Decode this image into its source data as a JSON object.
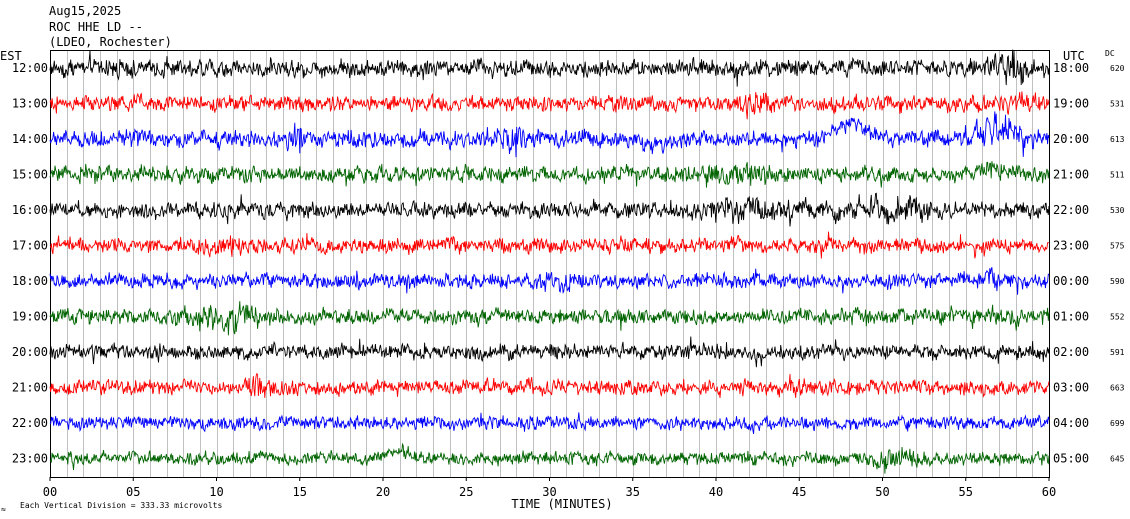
{
  "header": {
    "date": "Aug15,2025",
    "station": "ROC HHE LD --",
    "network": "(LDEO, Rochester)"
  },
  "axis_labels": {
    "left_timezone": "EST",
    "right_timezone": "UTC",
    "dc_header": "DC",
    "x_axis_title": "TIME (MINUTES)",
    "footer_note": "Each Vertical Division = 333.33 microvolts",
    "footer_mark": "≈"
  },
  "colors": {
    "black": "#000000",
    "red": "#ff0000",
    "blue": "#0000ff",
    "green": "#006400",
    "grid": "#808080"
  },
  "chart_data": {
    "type": "line",
    "title": "ROC HHE LD --",
    "xlabel": "TIME (MINUTES)",
    "xlim": [
      0,
      60
    ],
    "x_ticks": [
      "00",
      "05",
      "10",
      "15",
      "20",
      "25",
      "30",
      "35",
      "40",
      "45",
      "50",
      "55",
      "60"
    ],
    "vertical_division_microvolts": 333.33,
    "series": [
      {
        "est": "12:00",
        "utc": "18:00",
        "dc": "620",
        "color": "black",
        "amp": 1.0,
        "events": [
          {
            "t": 57.8,
            "amp": 2.2,
            "dur": 1.2,
            "shift": 0
          }
        ]
      },
      {
        "est": "13:00",
        "utc": "19:00",
        "dc": "531",
        "color": "red",
        "amp": 0.9,
        "events": [
          {
            "t": 42.5,
            "amp": 1.6,
            "dur": 0.8,
            "shift": 0
          },
          {
            "t": 58.5,
            "amp": 1.4,
            "dur": 0.8,
            "shift": 0
          }
        ]
      },
      {
        "est": "14:00",
        "utc": "20:00",
        "dc": "613",
        "color": "blue",
        "amp": 0.95,
        "events": [
          {
            "t": 14.8,
            "amp": 2.0,
            "dur": 0.5,
            "shift": 0
          },
          {
            "t": 28.0,
            "amp": 2.0,
            "dur": 0.6,
            "shift": 0
          },
          {
            "t": 36.5,
            "amp": 1.0,
            "dur": 1.0,
            "shift": -6
          },
          {
            "t": 48.2,
            "amp": 1.0,
            "dur": 1.2,
            "shift": 14
          },
          {
            "t": 57.0,
            "amp": 2.2,
            "dur": 1.5,
            "shift": 10
          }
        ]
      },
      {
        "est": "15:00",
        "utc": "21:00",
        "dc": "511",
        "color": "green",
        "amp": 0.9,
        "events": [
          {
            "t": 41.5,
            "amp": 1.4,
            "dur": 2.5,
            "shift": 0
          },
          {
            "t": 56.5,
            "amp": 1.6,
            "dur": 0.8,
            "shift": 10
          }
        ]
      },
      {
        "est": "16:00",
        "utc": "22:00",
        "dc": "530",
        "color": "black",
        "amp": 0.9,
        "events": [
          {
            "t": 42.0,
            "amp": 1.7,
            "dur": 2.5,
            "shift": 0
          },
          {
            "t": 50.5,
            "amp": 1.8,
            "dur": 2.5,
            "shift": 0
          }
        ]
      },
      {
        "est": "17:00",
        "utc": "23:00",
        "dc": "575",
        "color": "red",
        "amp": 0.85,
        "events": [
          {
            "t": 11.0,
            "amp": 2.0,
            "dur": 1.2,
            "shift": 0
          }
        ]
      },
      {
        "est": "18:00",
        "utc": "00:00",
        "dc": "590",
        "color": "blue",
        "amp": 0.85,
        "events": [
          {
            "t": 30.8,
            "amp": 1.5,
            "dur": 1.0,
            "shift": 0
          },
          {
            "t": 56.5,
            "amp": 2.0,
            "dur": 0.4,
            "shift": 0
          }
        ]
      },
      {
        "est": "19:00",
        "utc": "01:00",
        "dc": "552",
        "color": "green",
        "amp": 0.9,
        "events": [
          {
            "t": 10.5,
            "amp": 2.0,
            "dur": 2.0,
            "shift": 0
          }
        ]
      },
      {
        "est": "20:00",
        "utc": "02:00",
        "dc": "591",
        "color": "black",
        "amp": 0.85,
        "events": []
      },
      {
        "est": "21:00",
        "utc": "03:00",
        "dc": "663",
        "color": "red",
        "amp": 0.85,
        "events": [
          {
            "t": 12.7,
            "amp": 1.8,
            "dur": 0.6,
            "shift": 0
          }
        ]
      },
      {
        "est": "22:00",
        "utc": "04:00",
        "dc": "699",
        "color": "blue",
        "amp": 0.75,
        "events": []
      },
      {
        "est": "23:00",
        "utc": "05:00",
        "dc": "645",
        "color": "green",
        "amp": 0.75,
        "events": [
          {
            "t": 21.2,
            "amp": 1.0,
            "dur": 1.0,
            "shift": 8
          },
          {
            "t": 51.0,
            "amp": 1.8,
            "dur": 1.5,
            "shift": 0
          }
        ]
      }
    ]
  }
}
